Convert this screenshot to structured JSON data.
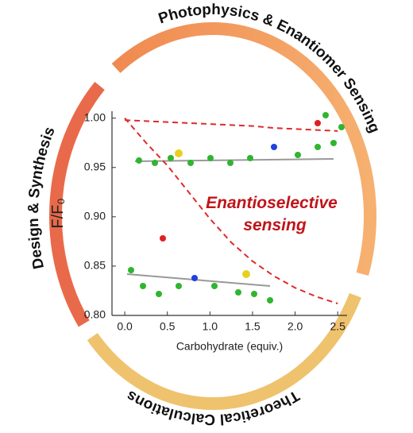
{
  "chart_data": {
    "type": "line",
    "ring_labels": [
      "Photophysics & Enantiomer Sensing",
      "Design & Synthesis",
      "Theoretical Calculations"
    ],
    "annotation": [
      "Enantioselective",
      "sensing"
    ],
    "xlabel": "Carbohydrate (equiv.)",
    "ylabel": "F/F₀",
    "x": [
      0,
      0.25,
      0.5,
      0.75,
      1.0,
      1.25,
      1.5,
      1.75,
      2.0,
      2.25,
      2.5
    ],
    "series": [
      {
        "color": "#e02a2a",
        "values": [
          0.998,
          0.997,
          0.996,
          0.995,
          0.994,
          0.993,
          0.992,
          0.99,
          0.989,
          0.988,
          0.987
        ]
      },
      {
        "color": "#e02a2a",
        "values": [
          1.0,
          0.975,
          0.952,
          0.925,
          0.898,
          0.874,
          0.855,
          0.84,
          0.828,
          0.819,
          0.812
        ]
      }
    ],
    "line_style": "dashed",
    "xlim": [
      -0.15,
      2.61
    ],
    "ylim": [
      0.8,
      1.007
    ],
    "xticks": [
      {
        "value": 0,
        "label": "0.0"
      },
      0.5,
      {
        "value": 1,
        "label": "1.0"
      },
      1.5,
      {
        "value": 2,
        "label": "2.0"
      },
      2.5
    ],
    "yticks": [
      {
        "value": 0.8,
        "label": "0.80"
      },
      0.85,
      {
        "value": 0.9,
        "label": "0.90"
      },
      0.95,
      {
        "value": 1,
        "label": "1.00"
      }
    ]
  }
}
